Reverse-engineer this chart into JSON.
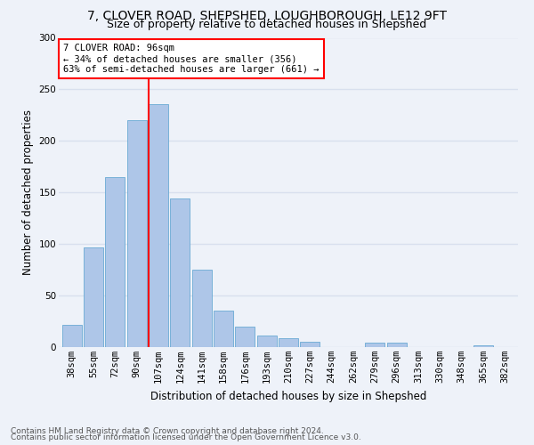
{
  "title1": "7, CLOVER ROAD, SHEPSHED, LOUGHBOROUGH, LE12 9FT",
  "title2": "Size of property relative to detached houses in Shepshed",
  "xlabel": "Distribution of detached houses by size in Shepshed",
  "ylabel": "Number of detached properties",
  "footer1": "Contains HM Land Registry data © Crown copyright and database right 2024.",
  "footer2": "Contains public sector information licensed under the Open Government Licence v3.0.",
  "categories": [
    "38sqm",
    "55sqm",
    "72sqm",
    "90sqm",
    "107sqm",
    "124sqm",
    "141sqm",
    "158sqm",
    "176sqm",
    "193sqm",
    "210sqm",
    "227sqm",
    "244sqm",
    "262sqm",
    "279sqm",
    "296sqm",
    "313sqm",
    "330sqm",
    "348sqm",
    "365sqm",
    "382sqm"
  ],
  "values": [
    22,
    97,
    165,
    220,
    236,
    144,
    75,
    35,
    20,
    11,
    9,
    5,
    0,
    0,
    4,
    4,
    0,
    0,
    0,
    2,
    0
  ],
  "bar_color": "#aec6e8",
  "bar_edge_color": "#6aaad4",
  "vline_x": 3.55,
  "vline_color": "red",
  "annotation_title": "7 CLOVER ROAD: 96sqm",
  "annotation_line1": "← 34% of detached houses are smaller (356)",
  "annotation_line2": "63% of semi-detached houses are larger (661) →",
  "annotation_box_color": "white",
  "annotation_box_edgecolor": "red",
  "ylim": [
    0,
    300
  ],
  "yticks": [
    0,
    50,
    100,
    150,
    200,
    250,
    300
  ],
  "background_color": "#eef2f9",
  "grid_color": "#d8e0ee",
  "title1_fontsize": 10,
  "title2_fontsize": 9,
  "xlabel_fontsize": 8.5,
  "ylabel_fontsize": 8.5,
  "tick_fontsize": 7.5,
  "footer_fontsize": 6.5,
  "annot_fontsize": 7.5
}
